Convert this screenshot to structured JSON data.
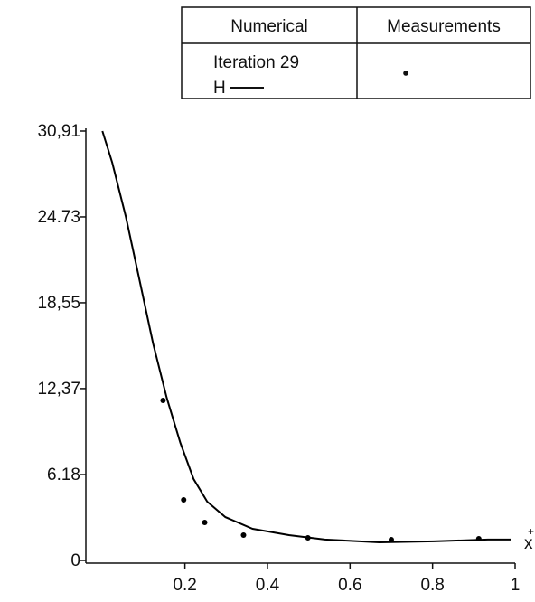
{
  "chart_data": {
    "type": "line",
    "xlabel": {
      "base": "x",
      "sup": "+"
    },
    "legend": {
      "headers": [
        "Numerical",
        "Measurements"
      ],
      "note": "Iteration 29"
    },
    "xlim": [
      -0.04,
      1
    ],
    "ylim": [
      0,
      30.91
    ],
    "xticks": [
      0.2,
      0.4,
      0.6,
      0.8,
      1
    ],
    "yticks": [
      0,
      6.18,
      {
        "value": 12.37,
        "label": "12,37"
      },
      {
        "value": 18.55,
        "label": "18,55"
      },
      24.73,
      {
        "value": 30.91,
        "label": "30,91"
      }
    ],
    "series": [
      {
        "name": "H",
        "color": "#000000",
        "style": "line",
        "x": [
          0.0,
          0.024,
          0.057,
          0.09,
          0.123,
          0.156,
          0.189,
          0.221,
          0.254,
          0.298,
          0.364,
          0.452,
          0.539,
          0.671,
          0.803,
          0.934,
          0.989
        ],
        "values": [
          30.91,
          28.63,
          24.73,
          20.17,
          15.62,
          11.71,
          8.46,
          5.86,
          4.23,
          3.12,
          2.28,
          1.82,
          1.5,
          1.3,
          1.37,
          1.5,
          1.5
        ]
      },
      {
        "color": "#000000",
        "style": "points",
        "x": [
          0.147,
          0.197,
          0.248,
          0.342,
          0.498,
          0.7,
          0.912
        ],
        "values": [
          11.52,
          4.36,
          2.73,
          1.82,
          1.63,
          1.5,
          1.56
        ]
      }
    ]
  }
}
